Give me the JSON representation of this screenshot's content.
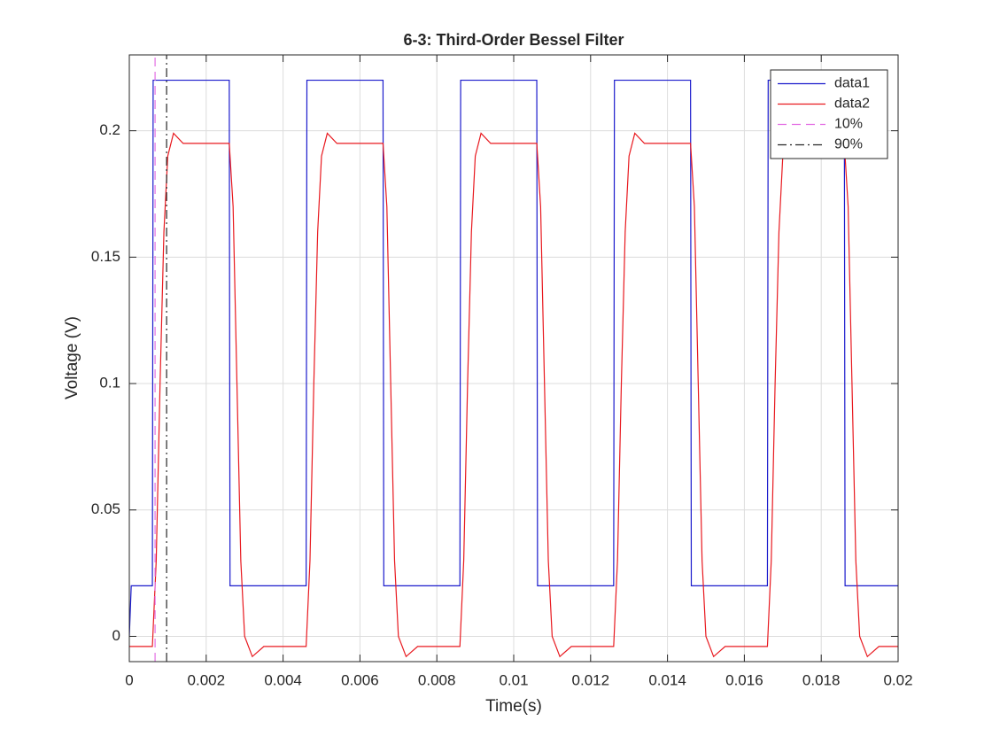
{
  "chart_data": {
    "type": "line",
    "title": "6-3: Third-Order Bessel Filter",
    "xlabel": "Time(s)",
    "ylabel": "Voltage (V)",
    "xlim": [
      0,
      0.02
    ],
    "ylim": [
      -0.01,
      0.23
    ],
    "xticks": [
      0,
      0.002,
      0.004,
      0.006,
      0.008,
      0.01,
      0.012,
      0.014,
      0.016,
      0.018,
      0.02
    ],
    "yticks": [
      0,
      0.05,
      0.1,
      0.15,
      0.2
    ],
    "grid": true,
    "legend": "northeast",
    "series": [
      {
        "name": "data1",
        "color": "#1a1acc",
        "linestyle": "solid",
        "x": [
          0,
          5e-05,
          0.0006,
          0.00062,
          0.0026,
          0.00262,
          0.0046,
          0.00462,
          0.0066,
          0.00662,
          0.0086,
          0.00862,
          0.0106,
          0.01062,
          0.0126,
          0.01262,
          0.0146,
          0.01462,
          0.0166,
          0.01662,
          0.0186,
          0.01862,
          0.02
        ],
        "values": [
          0,
          0.02,
          0.02,
          0.22,
          0.22,
          0.02,
          0.02,
          0.22,
          0.22,
          0.02,
          0.02,
          0.22,
          0.22,
          0.02,
          0.02,
          0.22,
          0.22,
          0.02,
          0.02,
          0.22,
          0.22,
          0.02,
          0.02
        ]
      },
      {
        "name": "data2",
        "color": "#e8191f",
        "linestyle": "solid",
        "x": [
          0,
          0.0006,
          0.0007,
          0.0008,
          0.0009,
          0.001,
          0.00115,
          0.0014,
          0.0026,
          0.0027,
          0.0028,
          0.0029,
          0.003,
          0.0032,
          0.0035,
          0.0046,
          0.0047,
          0.0048,
          0.0049,
          0.005,
          0.00515,
          0.0054,
          0.0066,
          0.0067,
          0.0068,
          0.0069,
          0.007,
          0.0072,
          0.0075,
          0.0086,
          0.0087,
          0.0088,
          0.0089,
          0.009,
          0.00915,
          0.0094,
          0.0106,
          0.0107,
          0.0108,
          0.0109,
          0.011,
          0.0112,
          0.0115,
          0.0126,
          0.0127,
          0.0128,
          0.0129,
          0.013,
          0.01315,
          0.0134,
          0.0146,
          0.0147,
          0.0148,
          0.0149,
          0.015,
          0.0152,
          0.0155,
          0.0166,
          0.0167,
          0.0168,
          0.0169,
          0.017,
          0.01715,
          0.0174,
          0.0186,
          0.0187,
          0.0188,
          0.0189,
          0.019,
          0.0192,
          0.0195,
          0.02
        ],
        "values": [
          -0.004,
          -0.004,
          0.03,
          0.1,
          0.16,
          0.19,
          0.199,
          0.195,
          0.195,
          0.17,
          0.1,
          0.03,
          0,
          -0.008,
          -0.004,
          -0.004,
          0.03,
          0.1,
          0.16,
          0.19,
          0.199,
          0.195,
          0.195,
          0.17,
          0.1,
          0.03,
          0,
          -0.008,
          -0.004,
          -0.004,
          0.03,
          0.1,
          0.16,
          0.19,
          0.199,
          0.195,
          0.195,
          0.17,
          0.1,
          0.03,
          0,
          -0.008,
          -0.004,
          -0.004,
          0.03,
          0.1,
          0.16,
          0.19,
          0.199,
          0.195,
          0.195,
          0.17,
          0.1,
          0.03,
          0,
          -0.008,
          -0.004,
          -0.004,
          0.03,
          0.1,
          0.16,
          0.19,
          0.199,
          0.195,
          0.195,
          0.17,
          0.1,
          0.03,
          0,
          -0.008,
          -0.004,
          -0.004
        ]
      },
      {
        "name": "10%",
        "color": "#e36ee3",
        "linestyle": "dashed",
        "x": [
          0.00067,
          0.00067
        ],
        "values": [
          -0.01,
          0.23
        ]
      },
      {
        "name": "90%",
        "color": "#262626",
        "linestyle": "dashdot",
        "x": [
          0.00097,
          0.00097
        ],
        "values": [
          -0.01,
          0.23
        ]
      }
    ]
  }
}
